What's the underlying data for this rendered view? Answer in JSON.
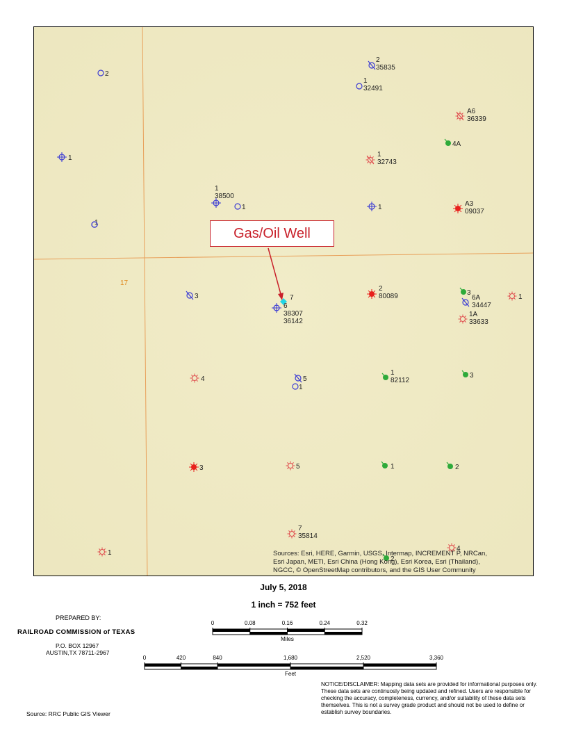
{
  "map": {
    "section_label": "17",
    "attribution": [
      "Sources: Esri, HERE, Garmin, USGS, Intermap, INCREMENT P, NRCan,",
      "Esri Japan, METI, Esri China (Hong Kong), Esri Korea, Esri (Thailand),",
      "NGCC, © OpenStreetMap contributors, and the GIS User Community"
    ],
    "callout": "Gas/Oil Well",
    "colors": {
      "background": "#f0ebc4",
      "gas": "#3a3ad4",
      "oil": "#e05050",
      "producing": "#2eaa3a",
      "permit": "#e8201c",
      "highlight": "#22d6e6",
      "line": "#e8a05a"
    },
    "wells": [
      {
        "type": "gas-hollow",
        "label": "2"
      },
      {
        "type": "gas-slash",
        "label": "2",
        "label2": "35835"
      },
      {
        "type": "gas-hollow",
        "label": "1",
        "label2": "32491"
      },
      {
        "type": "oil-dry",
        "label": "A6",
        "label2": "36339"
      },
      {
        "type": "producing",
        "label": "4A"
      },
      {
        "type": "gas-cross",
        "label": "1"
      },
      {
        "type": "oil-dry",
        "label": "1",
        "label2": "32743"
      },
      {
        "type": "gas-cross",
        "label": "1",
        "label2": "38500"
      },
      {
        "type": "gas-hollow",
        "label": "1"
      },
      {
        "type": "gas-cross",
        "label": "1"
      },
      {
        "type": "oil-permit",
        "label": "A3",
        "label2": "09037"
      },
      {
        "type": "gas-hollow",
        "label": "1"
      },
      {
        "type": "gas-hollow",
        "label": ""
      },
      {
        "type": "gas-slash",
        "label": "3"
      },
      {
        "type": "highlight",
        "label": "7"
      },
      {
        "type": "gas-cross",
        "label": "6",
        "label2": "38307",
        "label3": "36142"
      },
      {
        "type": "oil-permit",
        "label": "2",
        "label2": "80089"
      },
      {
        "type": "producing",
        "label": "3"
      },
      {
        "type": "gas-slash",
        "label": "6A",
        "label2": "34447"
      },
      {
        "type": "oil-hollow",
        "label": "1"
      },
      {
        "type": "oil-hollow",
        "label": "1A",
        "label2": "33633"
      },
      {
        "type": "oil-hollow",
        "label": "4"
      },
      {
        "type": "gas-slash",
        "label": "5"
      },
      {
        "type": "gas-hollow",
        "label": "1"
      },
      {
        "type": "producing",
        "label": "1",
        "label2": "82112"
      },
      {
        "type": "producing",
        "label": "3"
      },
      {
        "type": "oil-permit",
        "label": "3"
      },
      {
        "type": "oil-hollow",
        "label": "5"
      },
      {
        "type": "producing",
        "label": "1"
      },
      {
        "type": "producing",
        "label": "2"
      },
      {
        "type": "oil-hollow",
        "label": "7",
        "label2": "35814"
      },
      {
        "type": "oil-hollow",
        "label": "4"
      },
      {
        "type": "producing",
        "label": "2"
      },
      {
        "type": "oil-hollow",
        "label": "1"
      }
    ]
  },
  "layout_info": {
    "date": "July 5, 2018",
    "scale_text": "1 inch = 752 feet",
    "prepared_by": "PREPARED BY:",
    "agency": "RAILROAD COMMISSION of TEXAS",
    "address1": "P.O. BOX 12967",
    "address2": "AUSTIN,TX 78711-2967",
    "source": "Source: RRC Public GIS Viewer",
    "notice": "NOTICE/DISCLAIMER: Mapping data sets are provided for informational purposes only. These data sets are continuosly being updated and refined. Users are responsible for checking the accuracy, completeness, currency, and/or suitability of these data sets themselves. This is not a survey grade product and should not be used to define or establish survey boundaries."
  },
  "scalebar_miles": {
    "unit": "Miles",
    "ticks": [
      "0",
      "0.08",
      "0.16",
      "0.24",
      "0.32"
    ]
  },
  "scalebar_feet": {
    "unit": "Feet",
    "ticks": [
      "0",
      "420",
      "840",
      "1,680",
      "2,520",
      "3,360"
    ]
  }
}
